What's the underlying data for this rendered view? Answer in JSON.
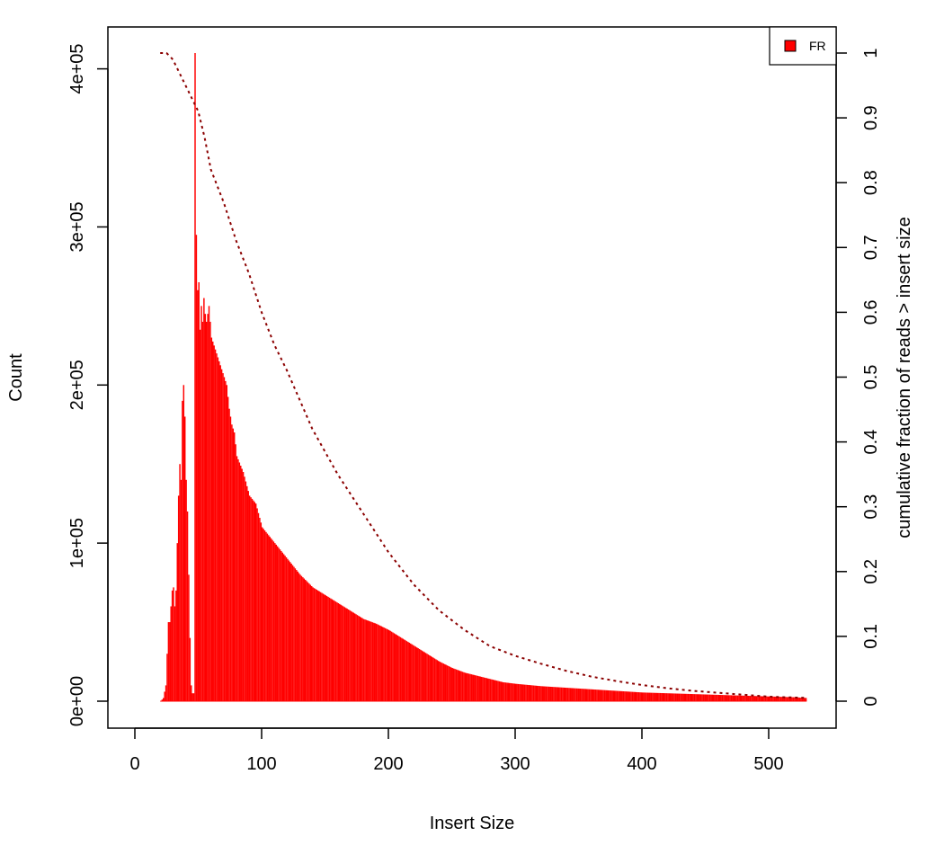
{
  "chart_data": {
    "type": "bar",
    "title": "",
    "xlabel": "Insert Size",
    "ylabel": "Count",
    "y2label": "cumulative fraction of reads > insert size",
    "xlim": [
      0,
      530
    ],
    "ylim": [
      0,
      410000
    ],
    "y2lim": [
      0,
      1
    ],
    "x_ticks": [
      0,
      100,
      200,
      300,
      400,
      500
    ],
    "y_ticks": [
      0,
      100000,
      200000,
      300000,
      400000
    ],
    "y_tick_labels": [
      "0e+00",
      "1e+05",
      "2e+05",
      "3e+05",
      "4e+05"
    ],
    "y2_ticks": [
      0,
      0.1,
      0.2,
      0.3,
      0.4,
      0.5,
      0.6,
      0.7,
      0.8,
      0.9,
      1
    ],
    "y2_tick_labels": [
      "0",
      "0.1",
      "0.2",
      "0.3",
      "0.4",
      "0.5",
      "0.6",
      "0.7",
      "0.8",
      "0.9",
      "1"
    ],
    "grid": false,
    "legend": {
      "position": "top-right",
      "entries": [
        {
          "name": "FR",
          "color": "#ff0000"
        }
      ]
    },
    "histogram": {
      "name": "FR",
      "color": "#ff0000",
      "x": [
        20,
        22,
        24,
        25,
        26,
        27,
        28,
        29,
        30,
        31,
        32,
        33,
        34,
        35,
        36,
        37,
        38,
        39,
        40,
        41,
        42,
        43,
        44,
        45,
        46,
        47,
        48,
        49,
        50,
        51,
        52,
        53,
        54,
        55,
        56,
        58,
        60,
        62,
        64,
        66,
        68,
        70,
        72,
        74,
        76,
        78,
        80,
        85,
        90,
        95,
        100,
        110,
        120,
        130,
        140,
        150,
        160,
        170,
        180,
        190,
        200,
        210,
        220,
        230,
        240,
        250,
        260,
        270,
        280,
        290,
        300,
        320,
        340,
        360,
        380,
        400,
        420,
        440,
        460,
        480,
        500,
        520,
        530
      ],
      "values": [
        0,
        2000,
        10000,
        30000,
        50000,
        50000,
        60000,
        70000,
        72000,
        60000,
        70000,
        100000,
        130000,
        150000,
        140000,
        190000,
        200000,
        180000,
        140000,
        120000,
        80000,
        40000,
        10000,
        5000,
        5000,
        410000,
        295000,
        260000,
        265000,
        235000,
        250000,
        240000,
        255000,
        245000,
        240000,
        250000,
        230000,
        225000,
        220000,
        215000,
        210000,
        205000,
        200000,
        185000,
        175000,
        170000,
        155000,
        145000,
        130000,
        125000,
        110000,
        100000,
        90000,
        80000,
        72000,
        67000,
        62000,
        57000,
        52000,
        49000,
        45000,
        40000,
        35000,
        30000,
        25000,
        21000,
        18000,
        16000,
        14000,
        12000,
        11000,
        9500,
        8500,
        7500,
        6500,
        5500,
        5000,
        4500,
        4000,
        3500,
        3000,
        2500,
        2000
      ]
    },
    "cumulative": {
      "color": "#8b0000",
      "style": "dotted",
      "x": [
        20,
        25,
        30,
        35,
        40,
        45,
        50,
        55,
        60,
        70,
        80,
        90,
        100,
        110,
        120,
        140,
        160,
        180,
        200,
        220,
        240,
        260,
        280,
        300,
        320,
        340,
        360,
        380,
        400,
        420,
        440,
        460,
        480,
        500,
        530
      ],
      "values": [
        1.0,
        1.0,
        0.99,
        0.97,
        0.95,
        0.93,
        0.91,
        0.87,
        0.82,
        0.77,
        0.71,
        0.66,
        0.6,
        0.55,
        0.51,
        0.42,
        0.35,
        0.29,
        0.23,
        0.18,
        0.14,
        0.11,
        0.085,
        0.07,
        0.058,
        0.047,
        0.038,
        0.031,
        0.025,
        0.02,
        0.016,
        0.013,
        0.01,
        0.007,
        0.005
      ]
    }
  }
}
